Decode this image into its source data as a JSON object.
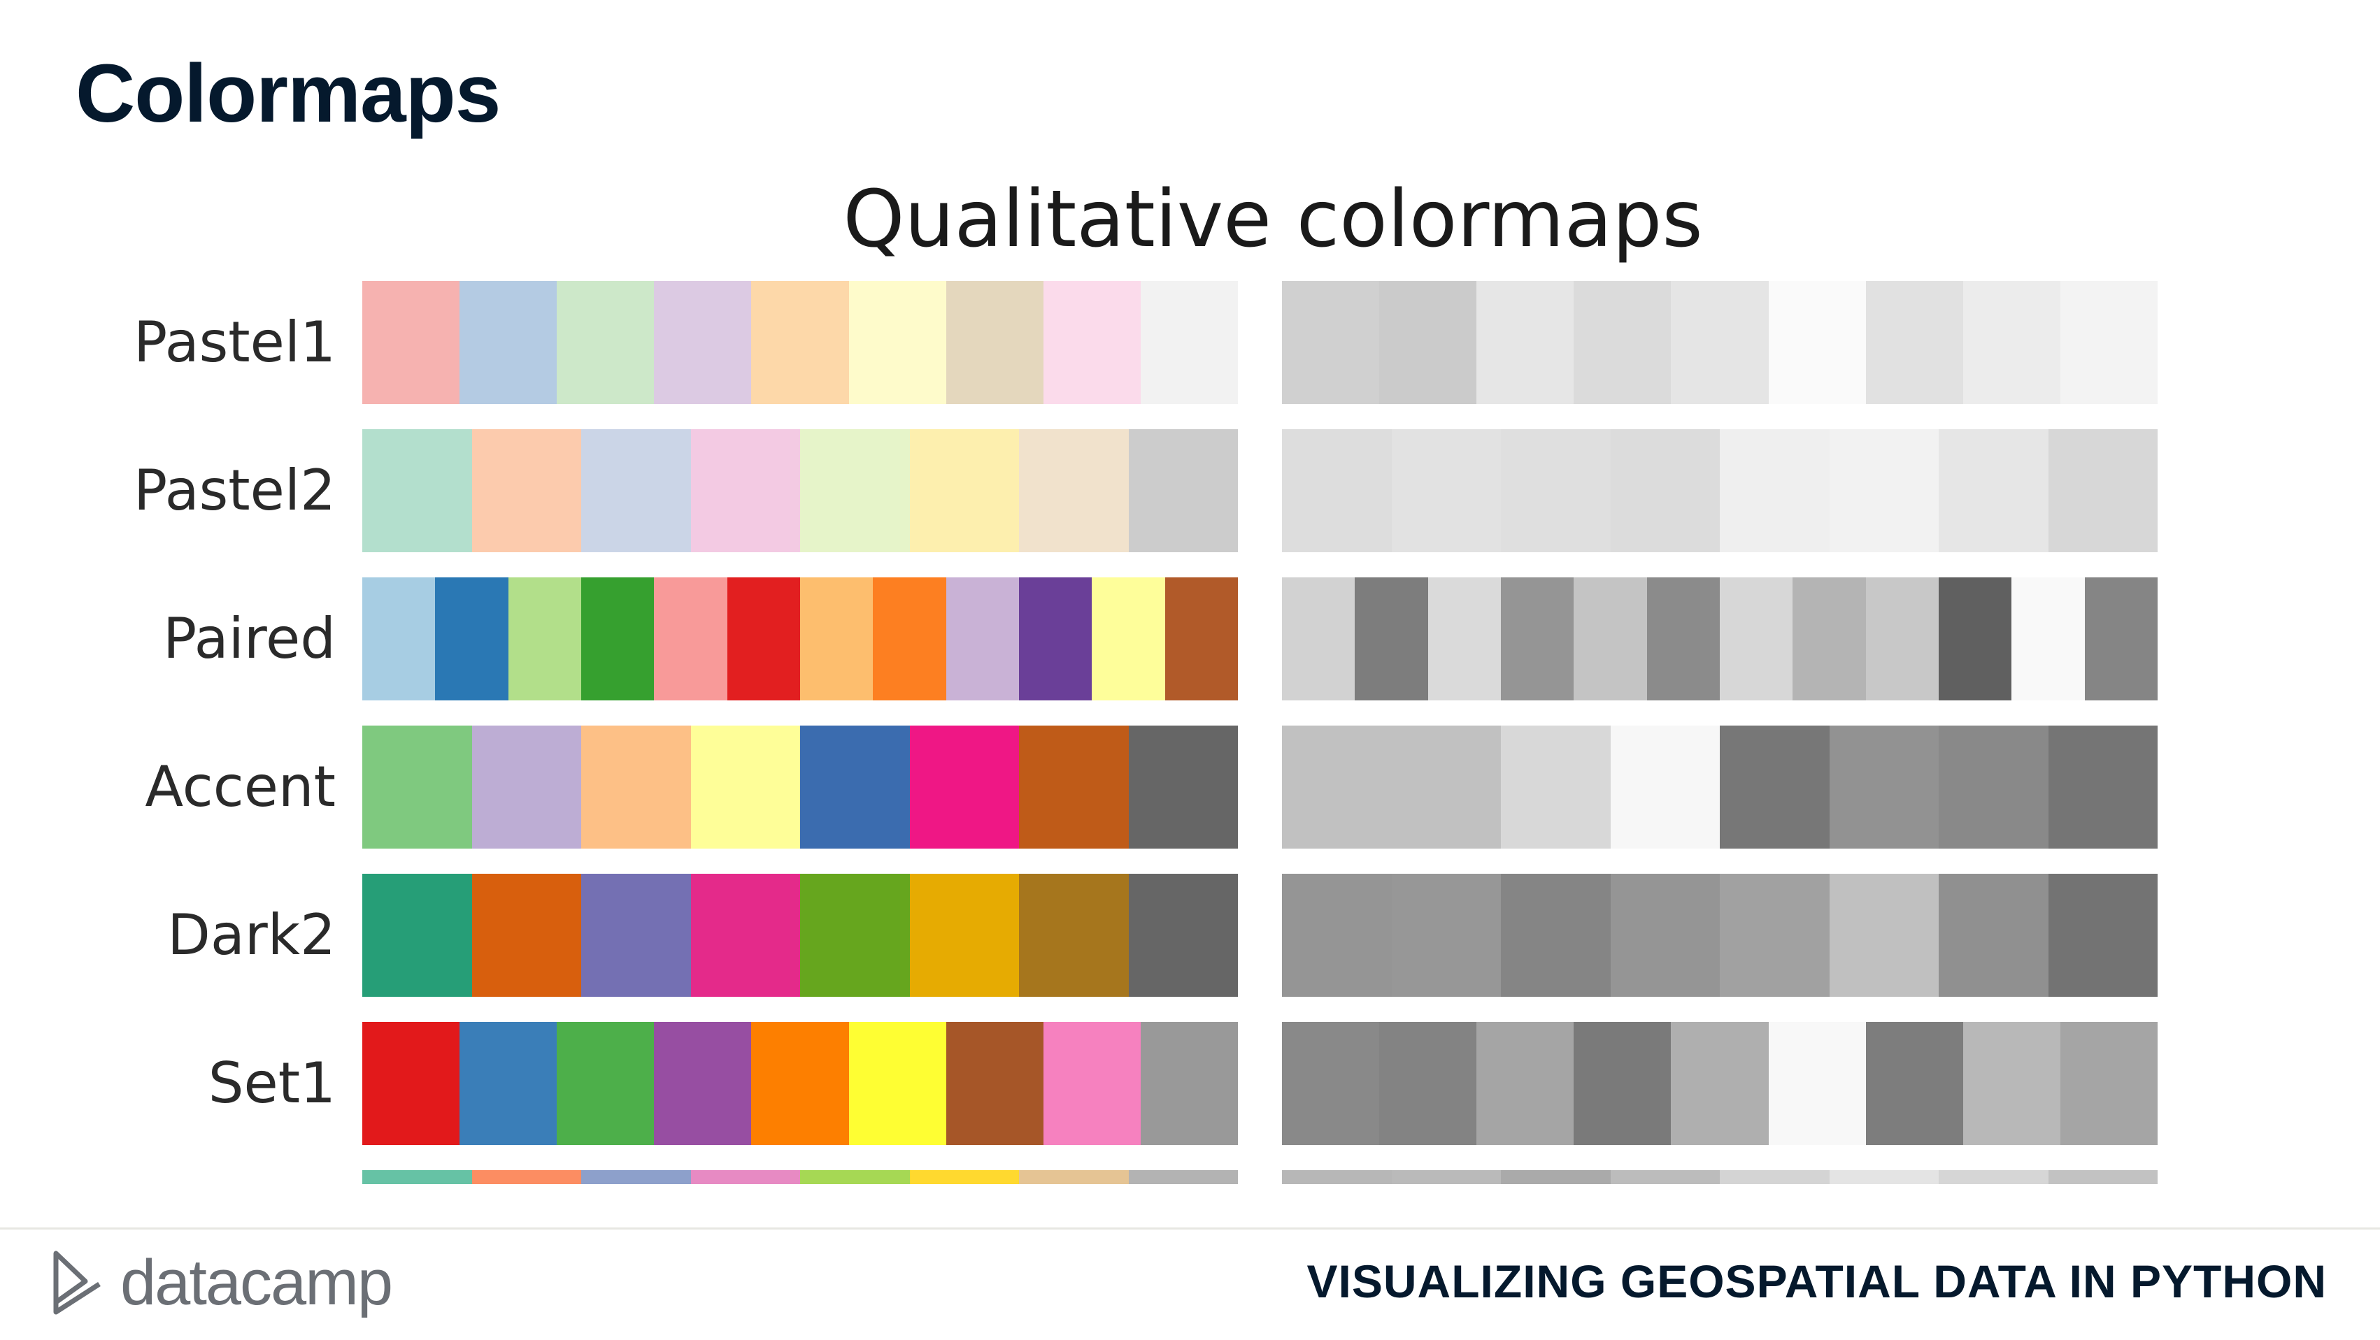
{
  "slide": {
    "title": "Colormaps"
  },
  "figure": {
    "title": "Qualitative colormaps"
  },
  "colormaps": [
    {
      "name": "Pastel1",
      "colors": [
        "#f6b2b0",
        "#b4cbe3",
        "#cde8c9",
        "#dccae3",
        "#fdd8a9",
        "#fefbcb",
        "#e4d7bd",
        "#fbdbeb",
        "#f2f2f2"
      ],
      "grays": [
        "#d0d0d0",
        "#cbcbcb",
        "#e6e6e6",
        "#dbdbdb",
        "#e5e5e5",
        "#fafafa",
        "#e1e1e1",
        "#ececec",
        "#f3f3f3"
      ]
    },
    {
      "name": "Pastel2",
      "colors": [
        "#b3dfcd",
        "#fccbad",
        "#cbd5e7",
        "#f3cae3",
        "#e6f4c9",
        "#fdefae",
        "#f1e2cc",
        "#cccccc"
      ],
      "grays": [
        "#dddddd",
        "#e2e2e2",
        "#dfdfdf",
        "#dcdcdc",
        "#efefef",
        "#f2f2f2",
        "#e6e6e6",
        "#d7d7d7"
      ]
    },
    {
      "name": "Paired",
      "colors": [
        "#a7cde3",
        "#2a78b4",
        "#b2df8a",
        "#36a02f",
        "#f89a99",
        "#e21f20",
        "#fdbe6e",
        "#fd7f21",
        "#c9b2d6",
        "#6a3f98",
        "#fefe9a",
        "#b15a29"
      ],
      "grays": [
        "#d2d2d2",
        "#7d7d7d",
        "#dadada",
        "#959595",
        "#c4c4c4",
        "#8b8b8b",
        "#d7d7d7",
        "#b4b4b4",
        "#c8c8c8",
        "#606060",
        "#f9f9f9",
        "#858585"
      ]
    },
    {
      "name": "Accent",
      "colors": [
        "#7fc97f",
        "#bdadd4",
        "#fdc086",
        "#fefe98",
        "#3b6caf",
        "#ef1785",
        "#bf5b18",
        "#666666"
      ],
      "grays": [
        "#c1c1c1",
        "#c1c1c1",
        "#d8d8d8",
        "#f7f7f7",
        "#777777",
        "#929292",
        "#898989",
        "#757575"
      ]
    },
    {
      "name": "Dark2",
      "colors": [
        "#269e77",
        "#d85f0d",
        "#7470b3",
        "#e42a8a",
        "#66a61e",
        "#e6ab02",
        "#a6761d",
        "#666666"
      ],
      "grays": [
        "#959595",
        "#979797",
        "#858585",
        "#959595",
        "#a1a1a1",
        "#c0c0c0",
        "#909090",
        "#737373"
      ]
    },
    {
      "name": "Set1",
      "colors": [
        "#e2191b",
        "#3a7eb8",
        "#4daf4a",
        "#974ea2",
        "#fd7f00",
        "#fefe33",
        "#a65628",
        "#f681bf",
        "#999999"
      ],
      "grays": [
        "#898989",
        "#838383",
        "#a5a5a5",
        "#7a7a7a",
        "#afafaf",
        "#f8f8f8",
        "#7d7d7d",
        "#b8b8b8",
        "#a5a5a5"
      ]
    }
  ],
  "partial_row": {
    "colors": [
      "#66c2a5",
      "#fc8d62",
      "#8da0cb",
      "#e78ac3",
      "#a6d854",
      "#ffd92f",
      "#e5c494",
      "#b3b3b3"
    ],
    "grays": [
      "#b7b7b7",
      "#bababa",
      "#aaaaaa",
      "#bcbcbc",
      "#d4d4d4",
      "#e4e4e4",
      "#d6d6d6",
      "#c2c2c2"
    ]
  },
  "footer": {
    "logo_text": "datacamp",
    "course_title": "VISUALIZING GEOSPATIAL DATA IN PYTHON"
  }
}
